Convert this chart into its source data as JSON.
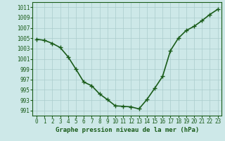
{
  "x": [
    0,
    1,
    2,
    3,
    4,
    5,
    6,
    7,
    8,
    9,
    10,
    11,
    12,
    13,
    14,
    15,
    16,
    17,
    18,
    19,
    20,
    21,
    22,
    23
  ],
  "y": [
    1004.8,
    1004.6,
    1004.0,
    1003.2,
    1001.4,
    999.0,
    996.5,
    995.8,
    994.2,
    993.1,
    991.9,
    991.8,
    991.7,
    991.3,
    993.1,
    995.3,
    997.6,
    1002.6,
    1005.0,
    1006.5,
    1007.3,
    1008.4,
    1009.6,
    1010.6
  ],
  "ylim": [
    990,
    1012
  ],
  "yticks": [
    991,
    993,
    995,
    997,
    999,
    1001,
    1003,
    1005,
    1007,
    1009,
    1011
  ],
  "xticks": [
    0,
    1,
    2,
    3,
    4,
    5,
    6,
    7,
    8,
    9,
    10,
    11,
    12,
    13,
    14,
    15,
    16,
    17,
    18,
    19,
    20,
    21,
    22,
    23
  ],
  "xlabel": "Graphe pression niveau de la mer (hPa)",
  "line_color": "#1a5c1a",
  "marker": "+",
  "marker_size": 4,
  "marker_linewidth": 1.0,
  "bg_color": "#cde8e8",
  "grid_color": "#aacccc",
  "tick_label_color": "#1a5c1a",
  "xlabel_color": "#1a5c1a",
  "line_width": 1.2,
  "xlabel_fontsize": 6.5,
  "tick_fontsize": 5.5
}
